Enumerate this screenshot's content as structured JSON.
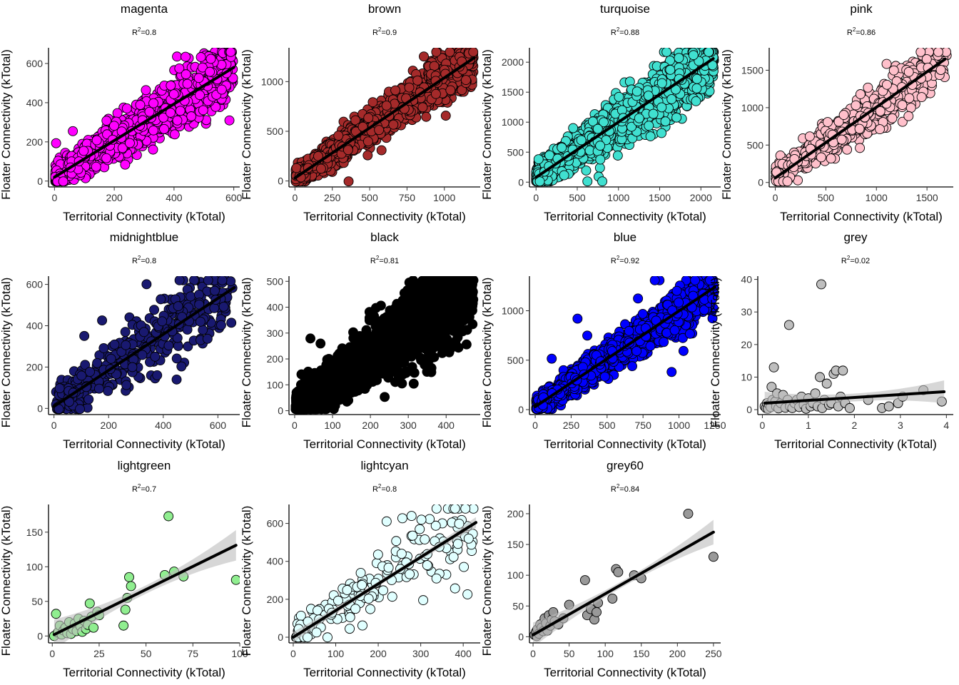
{
  "chart_data": [
    {
      "type": "scatter",
      "title": "magenta",
      "subtitle": "R²=0.8",
      "r2": "0.8",
      "xlabel": "Territorial Connectivity (kTotal)",
      "ylabel": "Floater Connectivity (kTotal)",
      "xlim": [
        -20,
        620
      ],
      "ylim": [
        -30,
        680
      ],
      "xticks": [
        0,
        200,
        400,
        600
      ],
      "yticks": [
        0,
        200,
        400,
        600
      ],
      "fill": "#FF00FF",
      "stroke": "#000000",
      "n_points": 1400,
      "spread": 0.22,
      "outliers": 10,
      "fit_line": {
        "x": [
          0,
          600
        ],
        "y": [
          20,
          580
        ]
      },
      "confidence_band": false
    },
    {
      "type": "scatter",
      "title": "brown",
      "subtitle": "R²=0.9",
      "r2": "0.9",
      "xlabel": "Territorial Connectivity (kTotal)",
      "ylabel": "Floater Connectivity (kTotal)",
      "xlim": [
        -40,
        1240
      ],
      "ylim": [
        -60,
        1340
      ],
      "xticks": [
        0,
        250,
        500,
        750,
        1000
      ],
      "yticks": [
        0,
        500,
        1000
      ],
      "fill": "#A52A2A",
      "stroke": "#000000",
      "n_points": 2000,
      "spread": 0.16,
      "outliers": 10,
      "fit_line": {
        "x": [
          0,
          1200
        ],
        "y": [
          30,
          1240
        ]
      },
      "confidence_band": false
    },
    {
      "type": "scatter",
      "title": "turquoise",
      "subtitle": "R²=0.88",
      "r2": "0.88",
      "xlabel": "Territorial Connectivity (kTotal)",
      "ylabel": "Floater Connectivity (kTotal)",
      "xlim": [
        -80,
        2240
      ],
      "ylim": [
        -80,
        2240
      ],
      "xticks": [
        0,
        500,
        1000,
        1500,
        2000
      ],
      "yticks": [
        0,
        500,
        1000,
        1500,
        2000
      ],
      "fill": "#40E0D0",
      "stroke": "#000000",
      "n_points": 2400,
      "spread": 0.2,
      "outliers": 14,
      "fit_line": {
        "x": [
          0,
          2150
        ],
        "y": [
          80,
          2060
        ]
      },
      "confidence_band": false
    },
    {
      "type": "scatter",
      "title": "pink",
      "subtitle": "R²=0.86",
      "r2": "0.86",
      "xlabel": "Territorial Connectivity (kTotal)",
      "ylabel": "Floater Connectivity (kTotal)",
      "xlim": [
        -60,
        1760
      ],
      "ylim": [
        -60,
        1800
      ],
      "xticks": [
        0,
        500,
        1000,
        1500
      ],
      "yticks": [
        0,
        500,
        1000,
        1500
      ],
      "fill": "#FFC0CB",
      "stroke": "#000000",
      "n_points": 700,
      "spread": 0.2,
      "outliers": 6,
      "fit_line": {
        "x": [
          0,
          1680
        ],
        "y": [
          60,
          1650
        ]
      },
      "confidence_band": false
    },
    {
      "type": "scatter",
      "title": "midnightblue",
      "subtitle": "R²=0.8",
      "r2": "0.8",
      "xlabel": "Territorial Connectivity (kTotal)",
      "ylabel": "Floater Connectivity (kTotal)",
      "xlim": [
        -20,
        680
      ],
      "ylim": [
        -30,
        640
      ],
      "xticks": [
        0,
        200,
        400,
        600
      ],
      "yticks": [
        0,
        200,
        400,
        600
      ],
      "fill": "#191970",
      "stroke": "#000000",
      "n_points": 380,
      "spread": 0.3,
      "outliers": 8,
      "fit_line": {
        "x": [
          0,
          660
        ],
        "y": [
          10,
          585
        ]
      },
      "confidence_band": false
    },
    {
      "type": "scatter",
      "title": "black",
      "subtitle": "R²=0.81",
      "r2": "0.81",
      "xlabel": "Territorial Connectivity (kTotal)",
      "ylabel": "Floater Connectivity (kTotal)",
      "xlim": [
        -15,
        490
      ],
      "ylim": [
        -15,
        520
      ],
      "xticks": [
        0,
        100,
        200,
        300,
        400
      ],
      "yticks": [
        0,
        100,
        200,
        300,
        400,
        500
      ],
      "fill": "#000000",
      "stroke": "#000000",
      "n_points": 3000,
      "spread": 0.28,
      "outliers": 12,
      "fit_line": null,
      "confidence_band": false
    },
    {
      "type": "scatter",
      "title": "blue",
      "subtitle": "R²=0.92",
      "r2": "0.92",
      "xlabel": "Territorial Connectivity (kTotal)",
      "ylabel": "Floater Connectivity (kTotal)",
      "xlim": [
        -40,
        1290
      ],
      "ylim": [
        -50,
        1350
      ],
      "xticks": [
        0,
        250,
        500,
        750,
        1000,
        1250
      ],
      "yticks": [
        0,
        500,
        1000
      ],
      "fill": "#0000FF",
      "stroke": "#000000",
      "n_points": 1800,
      "spread": 0.16,
      "outliers": 10,
      "fit_line": {
        "x": [
          0,
          1250
        ],
        "y": [
          30,
          1240
        ]
      },
      "confidence_band": false
    },
    {
      "type": "scatter",
      "title": "grey",
      "subtitle": "R²=0.02",
      "r2": "0.02",
      "xlabel": "Territorial Connectivity (kTotal)",
      "ylabel": "Floater Connectivity (kTotal)",
      "xlim": [
        -0.1,
        4.15
      ],
      "ylim": [
        -1.5,
        41
      ],
      "xticks": [
        0,
        1,
        2,
        3,
        4
      ],
      "yticks": [
        0,
        10,
        20,
        30,
        40
      ],
      "fill": "#BEBEBE",
      "stroke": "#000000",
      "points": [
        [
          0.05,
          1
        ],
        [
          0.08,
          0.5
        ],
        [
          0.1,
          2
        ],
        [
          0.12,
          0.3
        ],
        [
          0.15,
          1.5
        ],
        [
          0.18,
          0.8
        ],
        [
          0.2,
          7
        ],
        [
          0.22,
          3
        ],
        [
          0.25,
          13
        ],
        [
          0.28,
          2.5
        ],
        [
          0.3,
          1
        ],
        [
          0.32,
          5
        ],
        [
          0.35,
          0.4
        ],
        [
          0.4,
          2
        ],
        [
          0.45,
          4.5
        ],
        [
          0.5,
          0.6
        ],
        [
          0.55,
          3
        ],
        [
          0.58,
          26
        ],
        [
          0.6,
          1
        ],
        [
          0.65,
          0.5
        ],
        [
          0.7,
          2
        ],
        [
          0.75,
          3
        ],
        [
          0.8,
          0.8
        ],
        [
          0.85,
          4
        ],
        [
          0.9,
          1.5
        ],
        [
          0.95,
          0.3
        ],
        [
          1.0,
          3.5
        ],
        [
          1.05,
          1
        ],
        [
          1.1,
          2
        ],
        [
          1.15,
          5
        ],
        [
          1.2,
          1
        ],
        [
          1.25,
          10
        ],
        [
          1.28,
          38.5
        ],
        [
          1.3,
          0.5
        ],
        [
          1.35,
          3
        ],
        [
          1.4,
          8
        ],
        [
          1.45,
          1.5
        ],
        [
          1.5,
          2
        ],
        [
          1.55,
          11
        ],
        [
          1.6,
          12
        ],
        [
          1.65,
          1
        ],
        [
          1.7,
          4
        ],
        [
          1.75,
          12
        ],
        [
          1.8,
          2
        ],
        [
          1.9,
          0.5
        ],
        [
          2.3,
          3
        ],
        [
          2.6,
          0.5
        ],
        [
          2.75,
          1
        ],
        [
          2.95,
          2
        ],
        [
          3.05,
          4
        ],
        [
          3.5,
          6
        ],
        [
          3.9,
          2.5
        ]
      ],
      "fit_line": {
        "x": [
          0.05,
          3.95
        ],
        "y": [
          2.0,
          5.5
        ]
      },
      "confidence_band": true,
      "band_half_width": [
        1.2,
        3.5
      ]
    },
    {
      "type": "scatter",
      "title": "lightgreen",
      "subtitle": "R²=0.7",
      "r2": "0.7",
      "xlabel": "Territorial Connectivity (kTotal)",
      "ylabel": "Floater Connectivity (kTotal)",
      "xlim": [
        -2,
        100
      ],
      "ylim": [
        -10,
        190
      ],
      "xticks": [
        0,
        25,
        50,
        75,
        100
      ],
      "yticks": [
        0,
        50,
        100,
        150
      ],
      "fill": "#90EE90",
      "stroke": "#000000",
      "points": [
        [
          1,
          0
        ],
        [
          2,
          32
        ],
        [
          3,
          5
        ],
        [
          4,
          15
        ],
        [
          5,
          2
        ],
        [
          6,
          8
        ],
        [
          7,
          12
        ],
        [
          8,
          4
        ],
        [
          9,
          20
        ],
        [
          10,
          3
        ],
        [
          11,
          10
        ],
        [
          12,
          18
        ],
        [
          13,
          7
        ],
        [
          14,
          25
        ],
        [
          15,
          14
        ],
        [
          16,
          6
        ],
        [
          17,
          22
        ],
        [
          18,
          10
        ],
        [
          19,
          16
        ],
        [
          20,
          47
        ],
        [
          21,
          28
        ],
        [
          22,
          12
        ],
        [
          24,
          35
        ],
        [
          25,
          30
        ],
        [
          38,
          15
        ],
        [
          39,
          38
        ],
        [
          40,
          55
        ],
        [
          41,
          85
        ],
        [
          42,
          72
        ],
        [
          60,
          88
        ],
        [
          62,
          173
        ],
        [
          65,
          93
        ],
        [
          70,
          86
        ],
        [
          98,
          81
        ]
      ],
      "fit_line": {
        "x": [
          1,
          98
        ],
        "y": [
          2,
          131
        ]
      },
      "confidence_band": true,
      "band_half_width": [
        6,
        22
      ]
    },
    {
      "type": "scatter",
      "title": "lightcyan",
      "subtitle": "R²=0.8",
      "r2": "0.8",
      "xlabel": "Territorial Connectivity (kTotal)",
      "ylabel": "Floater Connectivity (kTotal)",
      "xlim": [
        -10,
        440
      ],
      "ylim": [
        -30,
        700
      ],
      "xticks": [
        0,
        100,
        200,
        300,
        400
      ],
      "yticks": [
        0,
        200,
        400,
        600
      ],
      "fill": "#E0FFFF",
      "stroke": "#000000",
      "n_points": 170,
      "spread": 0.3,
      "outliers": 6,
      "fit_line": {
        "x": [
          0,
          430
        ],
        "y": [
          0,
          605
        ]
      },
      "confidence_band": true,
      "band_half_width": [
        12,
        28
      ]
    },
    {
      "type": "scatter",
      "title": "grey60",
      "subtitle": "R²=0.84",
      "r2": "0.84",
      "xlabel": "Territorial Connectivity (kTotal)",
      "ylabel": "Floater Connectivity (kTotal)",
      "xlim": [
        -5,
        260
      ],
      "ylim": [
        -10,
        215
      ],
      "xticks": [
        0,
        50,
        100,
        150,
        200,
        250
      ],
      "yticks": [
        0,
        50,
        100,
        150,
        200
      ],
      "fill": "#999999",
      "stroke": "#000000",
      "points": [
        [
          2,
          3
        ],
        [
          4,
          8
        ],
        [
          5,
          1
        ],
        [
          6,
          12
        ],
        [
          8,
          5
        ],
        [
          10,
          20
        ],
        [
          12,
          15
        ],
        [
          14,
          9
        ],
        [
          16,
          30
        ],
        [
          18,
          22
        ],
        [
          20,
          10
        ],
        [
          22,
          35
        ],
        [
          24,
          18
        ],
        [
          26,
          28
        ],
        [
          28,
          40
        ],
        [
          30,
          25
        ],
        [
          35,
          20
        ],
        [
          42,
          30
        ],
        [
          50,
          52
        ],
        [
          72,
          92
        ],
        [
          75,
          35
        ],
        [
          80,
          45
        ],
        [
          85,
          28
        ],
        [
          88,
          40
        ],
        [
          90,
          55
        ],
        [
          110,
          62
        ],
        [
          115,
          110
        ],
        [
          118,
          105
        ],
        [
          140,
          100
        ],
        [
          150,
          95
        ],
        [
          215,
          200
        ],
        [
          250,
          130
        ]
      ],
      "fit_line": {
        "x": [
          0,
          250
        ],
        "y": [
          3,
          170
        ]
      },
      "confidence_band": true,
      "band_half_width": [
        5,
        20
      ]
    }
  ]
}
